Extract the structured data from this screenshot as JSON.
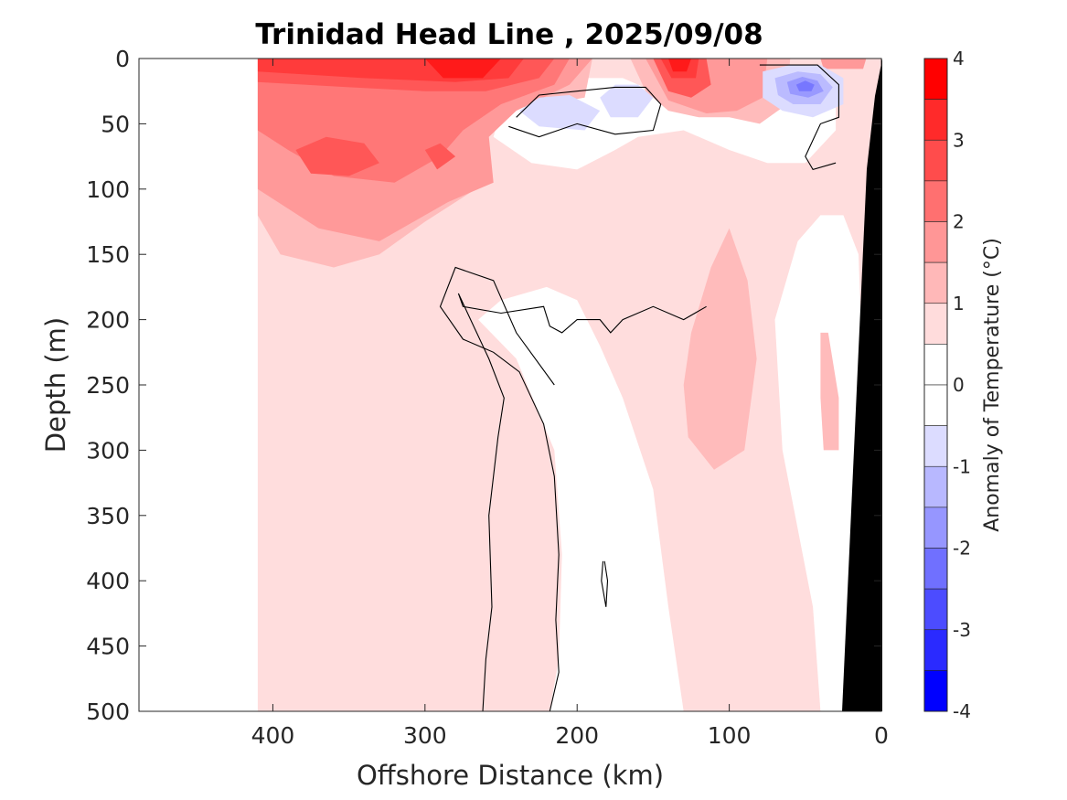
{
  "chart_data": {
    "type": "contour",
    "title": "Trinidad Head Line , 2025/09/08",
    "xlabel": "Offshore Distance (km)",
    "ylabel": "Depth (m)",
    "xlim": [
      488,
      0
    ],
    "x_reversed": true,
    "ylim": [
      0,
      500
    ],
    "y_reversed": true,
    "x_ticks": [
      400,
      300,
      200,
      100,
      0
    ],
    "y_ticks": [
      0,
      50,
      100,
      150,
      200,
      250,
      300,
      350,
      400,
      450,
      500
    ],
    "colorbar": {
      "label": "Anomaly of Temperature (°C)",
      "range": [
        -4,
        4
      ],
      "step": 0.5,
      "tick_values": [
        4,
        3,
        2,
        1,
        0,
        -1,
        -2,
        -3,
        -4
      ],
      "tick_labels": [
        "4",
        "3",
        "2",
        "1",
        "0",
        "-1",
        "-2",
        "-3",
        "-4"
      ]
    },
    "levels": [
      {
        "value": 3.5,
        "color": "#ff1a1a"
      },
      {
        "value": 3.0,
        "color": "#ff3b3b"
      },
      {
        "value": 2.5,
        "color": "#ff5757"
      },
      {
        "value": 2.0,
        "color": "#ff7777"
      },
      {
        "value": 1.5,
        "color": "#ff9999"
      },
      {
        "value": 1.0,
        "color": "#ffbbbb"
      },
      {
        "value": 0.5,
        "color": "#ffdddd"
      },
      {
        "value": -0.5,
        "color": "#dcdcff"
      },
      {
        "value": -1.0,
        "color": "#bbbbff"
      },
      {
        "value": -1.5,
        "color": "#9999ff"
      },
      {
        "value": -2.0,
        "color": "#7777ff"
      }
    ],
    "colorbar_colors": [
      "#ff0000",
      "#ff2a2a",
      "#ff4c4c",
      "#ff7070",
      "#ff9696",
      "#ffb8b8",
      "#ffdcdc",
      "#ffffff",
      "#ffffff",
      "#dcdcff",
      "#b8b8ff",
      "#9696ff",
      "#7070ff",
      "#4c4cff",
      "#2a2aff",
      "#0000ff"
    ],
    "data_coverage_km": [
      0,
      410
    ],
    "anomaly_features": [
      {
        "x": 280,
        "depth": 10,
        "anomaly": 3.5
      },
      {
        "x": 320,
        "depth": 10,
        "anomaly": 3.0
      },
      {
        "x": 130,
        "depth": 10,
        "anomaly": 3.5
      },
      {
        "x": 345,
        "depth": 75,
        "anomaly": 2.0
      },
      {
        "x": 290,
        "depth": 75,
        "anomaly": 2.0
      },
      {
        "x": 330,
        "depth": 120,
        "anomaly": 1.5
      },
      {
        "x": 200,
        "depth": 45,
        "anomaly": -0.8
      },
      {
        "x": 165,
        "depth": 30,
        "anomaly": -0.8
      },
      {
        "x": 48,
        "depth": 20,
        "anomaly": -2.0
      },
      {
        "x": 115,
        "depth": 350,
        "anomaly": 0.8
      },
      {
        "x": 120,
        "depth": 300,
        "anomaly": 1.2
      },
      {
        "x": 260,
        "depth": 400,
        "anomaly": 0.3
      },
      {
        "x": 25,
        "depth": 350,
        "anomaly": 0.8
      }
    ],
    "bathymetry": {
      "color": "#000000",
      "bottom_depth_m": [
        [
          0,
          0
        ],
        [
          5,
          60
        ],
        [
          12,
          85
        ],
        [
          25,
          500
        ]
      ]
    },
    "zero_contour_color": "#000000"
  }
}
